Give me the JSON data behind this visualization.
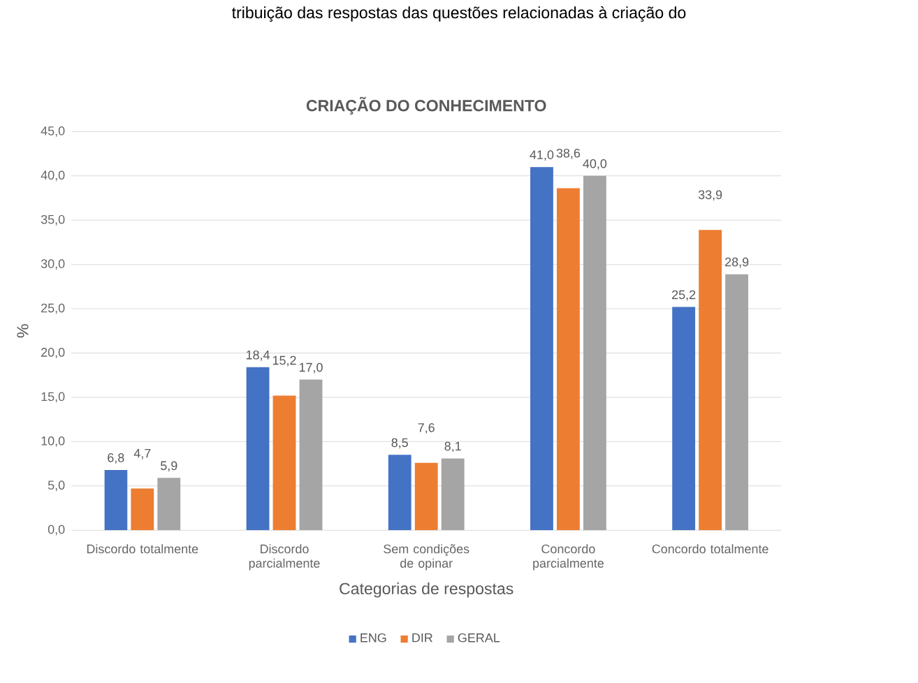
{
  "chart_data": {
    "type": "bar",
    "title": "CRIAÇÃO DO CONHECIMENTO",
    "xlabel": "Categorias de respostas",
    "ylabel": "%",
    "annotations": [
      "tribuição das respostas das questões relacionadas à criação do"
    ],
    "categories": [
      "Discordo totalmente",
      "Discordo parcialmente",
      "Sem condições de opinar",
      "Concordo parcialmente",
      "Concordo totalmente"
    ],
    "series": [
      {
        "name": "ENG",
        "color": "#4472c4",
        "values": [
          6.8,
          18.4,
          8.5,
          41.0,
          25.2
        ],
        "value_labels": [
          "6,8",
          "18,4",
          "8,5",
          "41,0",
          "25,2"
        ]
      },
      {
        "name": "DIR",
        "color": "#ed7d31",
        "values": [
          4.7,
          15.2,
          7.6,
          38.6,
          33.9
        ],
        "value_labels": [
          "4,7",
          "15,2",
          "7,6",
          "38,6",
          "33,9"
        ]
      },
      {
        "name": "GERAL",
        "color": "#a5a5a5",
        "values": [
          5.9,
          17.0,
          8.1,
          40.0,
          28.9
        ],
        "value_labels": [
          "5,9",
          "17,0",
          "8,1",
          "40,0",
          "28,9"
        ]
      }
    ],
    "ylim": [
      0,
      45
    ],
    "yticks": [
      {
        "value": 0,
        "label": "0,0"
      },
      {
        "value": 5,
        "label": "5,0"
      },
      {
        "value": 10,
        "label": "10,0"
      },
      {
        "value": 15,
        "label": "15,0"
      },
      {
        "value": 20,
        "label": "20,0"
      },
      {
        "value": 25,
        "label": "25,0"
      },
      {
        "value": 30,
        "label": "30,0"
      },
      {
        "value": 35,
        "label": "35,0"
      },
      {
        "value": 40,
        "label": "40,0"
      },
      {
        "value": 45,
        "label": "45,0"
      }
    ],
    "grid": "y",
    "legend": "bottom"
  }
}
